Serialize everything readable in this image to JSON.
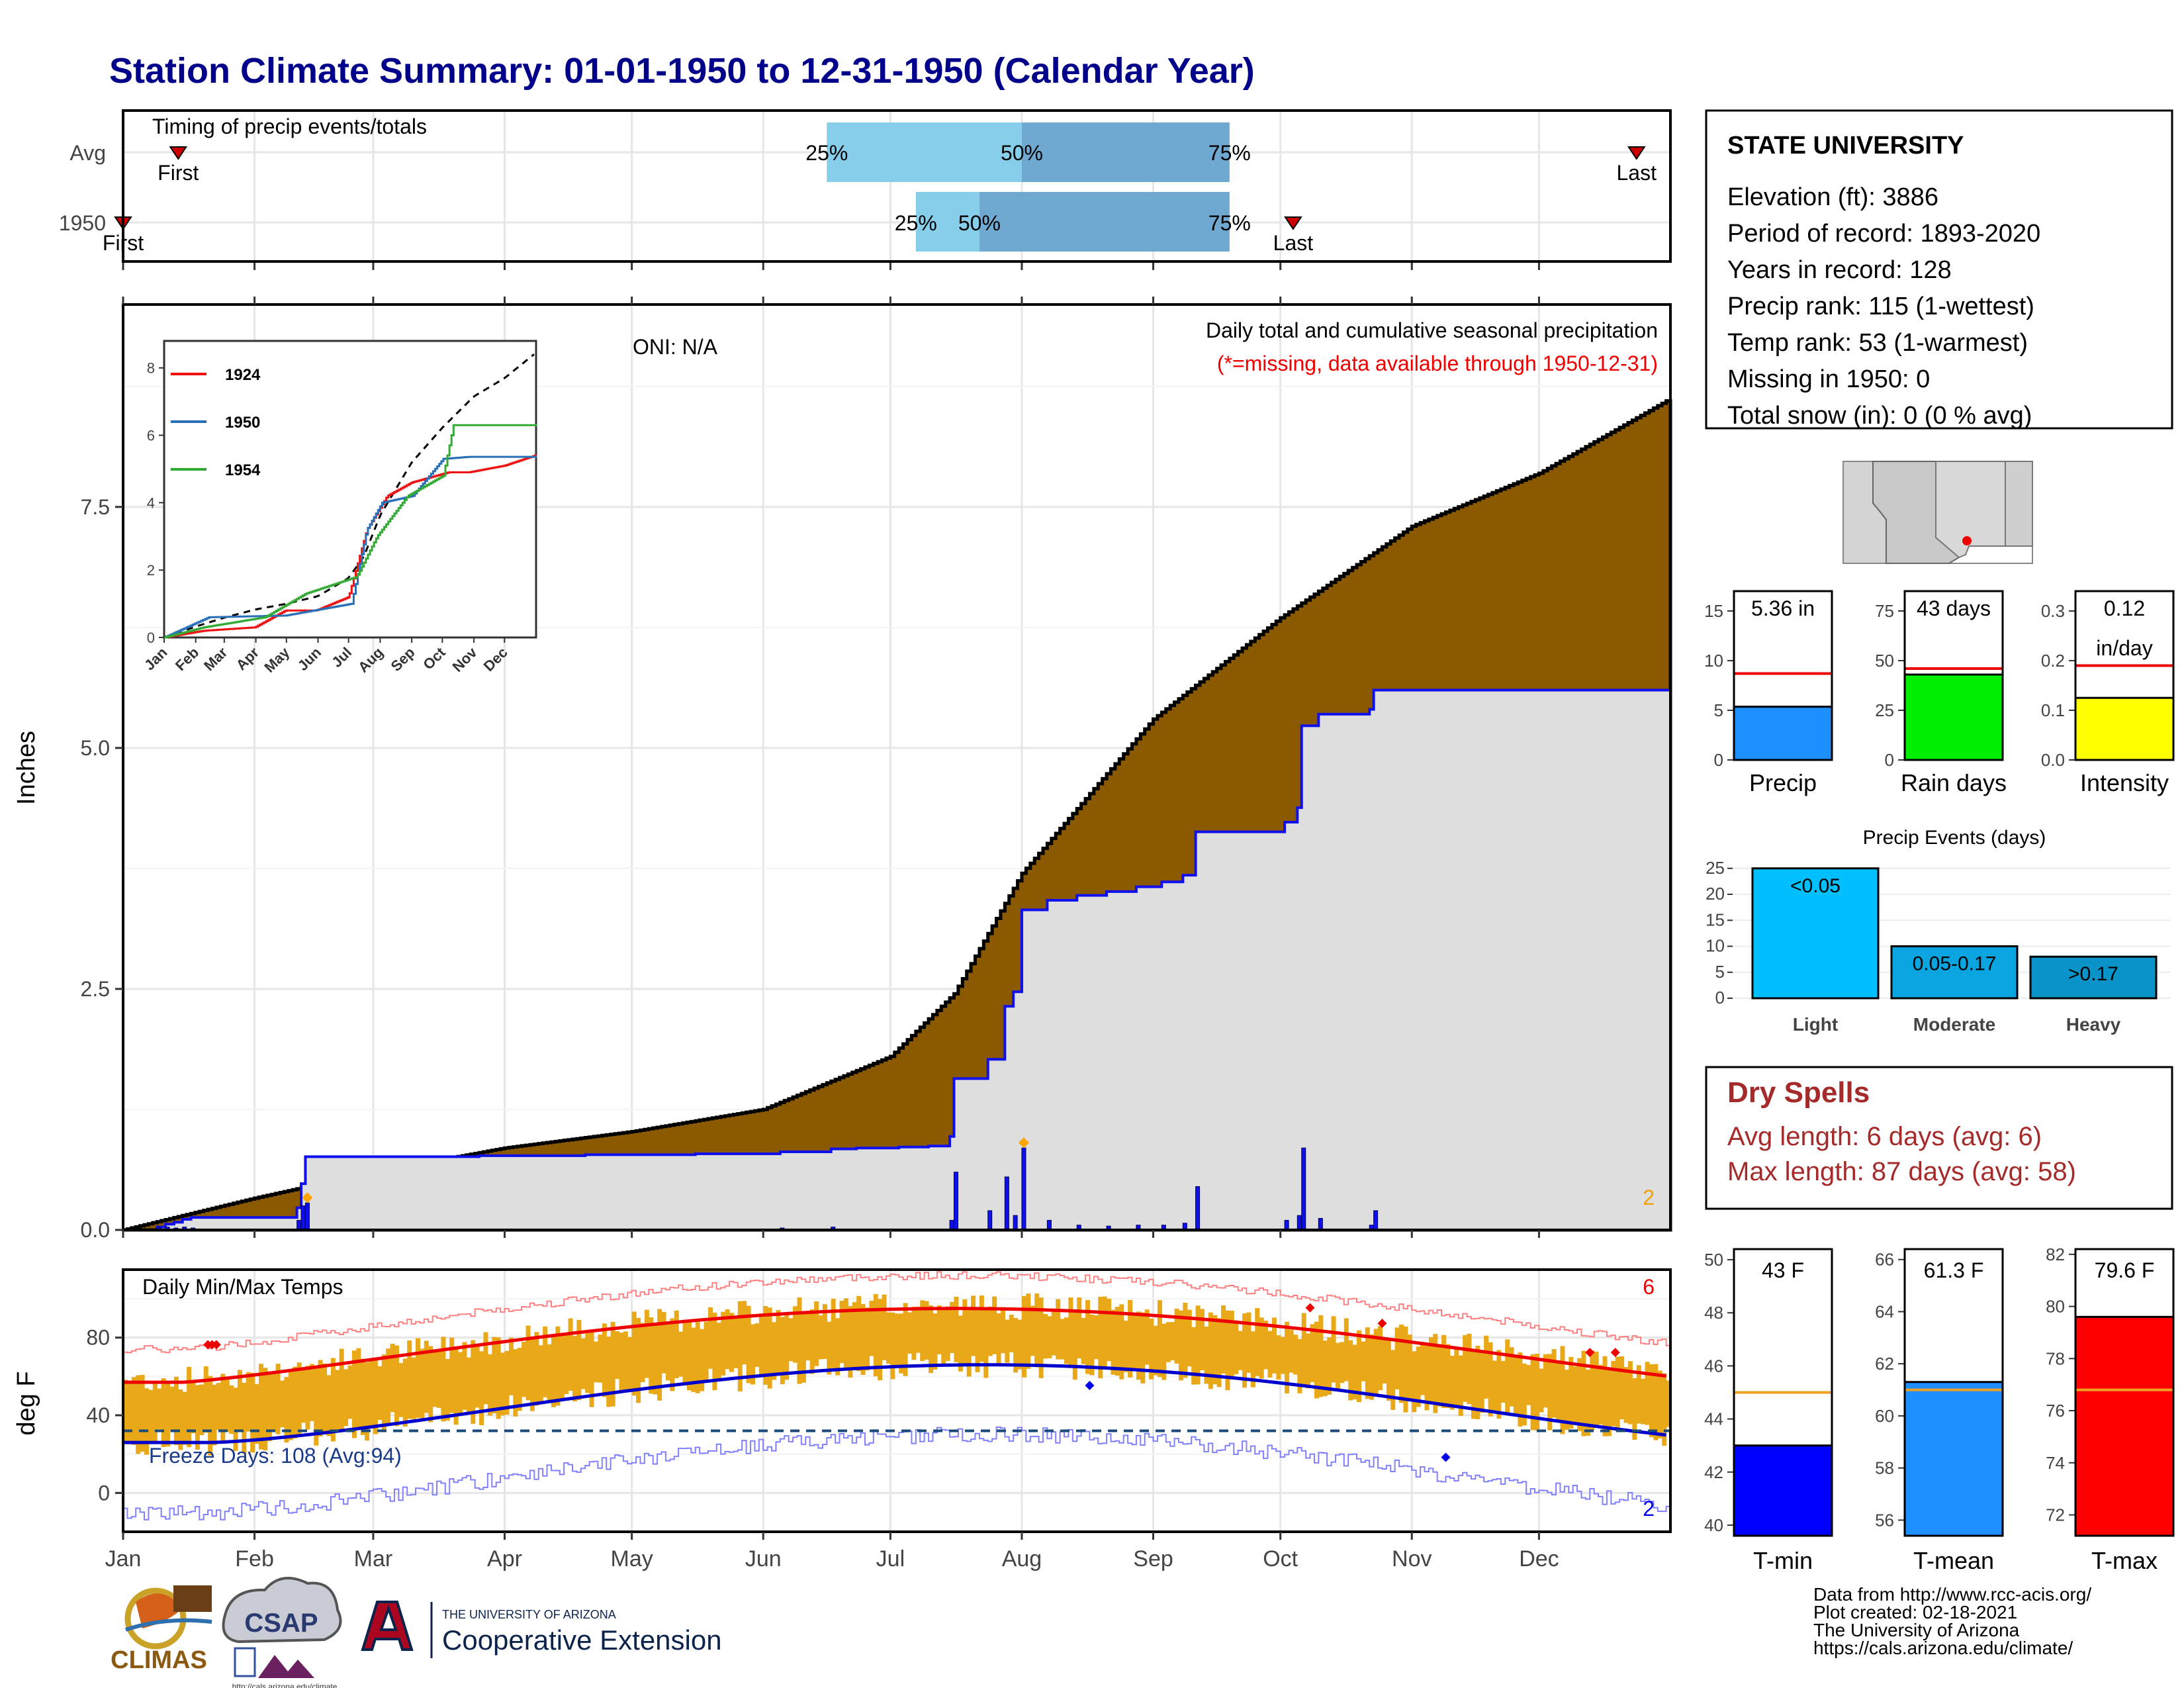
{
  "title": "Station Climate Summary: 01-01-1950 to 12-31-1950 (Calendar Year)",
  "timing": {
    "label": "Timing of precip events/totals",
    "rows": [
      "Avg",
      "1950"
    ],
    "first_label": "First",
    "last_label": "Last",
    "pct_labels": [
      "25%",
      "50%",
      "75%"
    ],
    "avg": {
      "first": "Jan 14",
      "p25": "Jun 16",
      "p50": "Aug 1",
      "p75": "Sep 19",
      "last": "Dec 24"
    },
    "y1950": {
      "first": "Jan 1",
      "p25": "Jul 7",
      "p50": "Jul 22",
      "p75": "Sep 19",
      "last": "Oct 4"
    }
  },
  "months": [
    "Jan",
    "Feb",
    "Mar",
    "Apr",
    "May",
    "Jun",
    "Jul",
    "Aug",
    "Sep",
    "Oct",
    "Nov",
    "Dec"
  ],
  "precip_panel": {
    "ylabel": "Inches",
    "yticks": [
      "0.0",
      "2.5",
      "5.0",
      "7.5"
    ],
    "oni": "ONI: N/A",
    "caption1": "Daily total and cumulative seasonal precipitation",
    "caption2": "(*=missing, data available through 1950-12-31)",
    "corner_count": "2",
    "avg_cumulative_end": 8.6,
    "year_total": 5.36
  },
  "inset": {
    "yticks": [
      "0",
      "2",
      "4",
      "6",
      "8"
    ],
    "months": [
      "Jan",
      "Feb",
      "Mar",
      "Apr",
      "May",
      "Jun",
      "Jul",
      "Aug",
      "Sep",
      "Oct",
      "Nov",
      "Dec"
    ],
    "series": [
      {
        "name": "1924",
        "color": "#ee1111"
      },
      {
        "name": "1950",
        "color": "#2a70b8"
      },
      {
        "name": "1954",
        "color": "#33aa33"
      }
    ]
  },
  "station": {
    "name": "STATE UNIVERSITY",
    "lines": [
      "Elevation (ft): 3886",
      "Period of record: 1893-2020",
      "Years in record: 128",
      "Precip rank: 115 (1-wettest)",
      "Temp rank: 53 (1-warmest)",
      "Missing in 1950: 0",
      "Total snow (in): 0 (0 % avg)"
    ]
  },
  "mini_bars": [
    {
      "label": "Precip",
      "value_text": "5.36 in",
      "value": 5.36,
      "avg": 8.7,
      "yticks": [
        "0",
        "5",
        "10",
        "15"
      ],
      "ymax": 17,
      "color": "#1e8fff"
    },
    {
      "label": "Rain days",
      "value_text": "43 days",
      "value": 43,
      "avg": 46,
      "yticks": [
        "0",
        "25",
        "50",
        "75"
      ],
      "ymax": 85,
      "color": "#00ee00"
    },
    {
      "label": "Intensity",
      "value_text": "0.12",
      "value_text2": "in/day",
      "value": 0.125,
      "avg": 0.19,
      "yticks": [
        "0.0",
        "0.1",
        "0.2",
        "0.3"
      ],
      "ymax": 0.34,
      "color": "#ffff00"
    }
  ],
  "precip_events": {
    "title": "Precip Events (days)",
    "yticks": [
      "0",
      "5",
      "10",
      "15",
      "20",
      "25"
    ],
    "bars": [
      {
        "category": "Light",
        "label": "<0.05",
        "value": 25,
        "color": "#00bfff"
      },
      {
        "category": "Moderate",
        "label": "0.05-0.17",
        "value": 10,
        "color": "#0aa4e0"
      },
      {
        "category": "Heavy",
        "label": ">0.17",
        "value": 8,
        "color": "#0a93c8"
      }
    ]
  },
  "dry_spells": {
    "title": "Dry Spells",
    "avg_length": "Avg length: 6 days (avg: 6)",
    "max_length": "Max length: 87 days (avg: 58)"
  },
  "temp_panel": {
    "title": "Daily Min/Max Temps",
    "ylabel": "deg F",
    "yticks": [
      "0",
      "40",
      "80"
    ],
    "freeze": "Freeze Days: 108 (Avg:94)",
    "top_count": "6",
    "bottom_count": "2"
  },
  "temp_bars": [
    {
      "label": "T-min",
      "value_text": "43 F",
      "value": 43,
      "avg": 45,
      "yticks": [
        "40",
        "42",
        "44",
        "46",
        "48",
        "50"
      ],
      "ymin": 39.6,
      "ymax": 50.4,
      "color": "#0000ff"
    },
    {
      "label": "T-mean",
      "value_text": "61.3 F",
      "value": 61.3,
      "avg": 61,
      "yticks": [
        "56",
        "58",
        "60",
        "62",
        "64",
        "66"
      ],
      "ymin": 55.4,
      "ymax": 66.4,
      "color": "#1e8fff"
    },
    {
      "label": "T-max",
      "value_text": "79.6 F",
      "value": 79.6,
      "avg": 76.8,
      "yticks": [
        "72",
        "74",
        "76",
        "78",
        "80",
        "82"
      ],
      "ymin": 71.2,
      "ymax": 82.2,
      "color": "#ff0000"
    }
  ],
  "logos": {
    "climas": "CLIMAS",
    "csap": "CSAP",
    "csap_url": "http://cals.arizona.edu/climate",
    "ua_small": "THE UNIVERSITY OF ARIZONA",
    "ua_big": "Cooperative Extension"
  },
  "footer": [
    "Data from http://www.rcc-acis.org/",
    "Plot created: 02-18-2021",
    "The University of Arizona",
    "https://cals.arizona.edu/climate/"
  ],
  "colors": {
    "title": "#00008b",
    "avg_precip_fill": "#8b5a00",
    "year_precip_fill": "#dedede",
    "daily_bar": "#1010ee",
    "temp_bar": "#e8a818",
    "dry_spell": "#a52a2a"
  }
}
